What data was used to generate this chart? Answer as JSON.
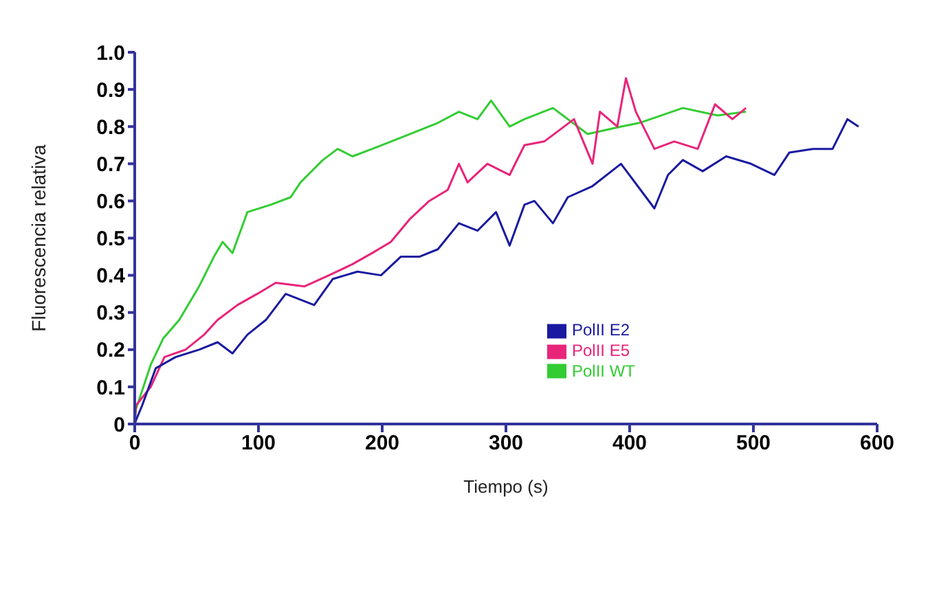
{
  "chart_data": {
    "type": "line",
    "xlabel": "Tiempo (s)",
    "ylabel": "Fluorescencia relativa",
    "xlim": [
      0,
      600
    ],
    "xticks": [
      0,
      100,
      200,
      300,
      400,
      500,
      600
    ],
    "ylim": [
      0,
      1.0
    ],
    "yticks": [
      0,
      0.1,
      0.2,
      0.3,
      0.4,
      0.5,
      0.6,
      0.7,
      0.8,
      0.9,
      {
        "value": 1.0,
        "label": "1.0"
      }
    ],
    "grid": false,
    "legend": "right",
    "marker": "none",
    "line_style": "solid",
    "series": [
      {
        "name": "PolII WT",
        "color": "#33cc33",
        "x": [
          0,
          1,
          13,
          23,
          36,
          52,
          64,
          71,
          79,
          91,
          110,
          126,
          134,
          152,
          164,
          176,
          192,
          215,
          245,
          262,
          277,
          288,
          303,
          315,
          338,
          366,
          393,
          408,
          443,
          471,
          494
        ],
        "values": [
          0,
          0.04,
          0.16,
          0.23,
          0.28,
          0.37,
          0.45,
          0.49,
          0.46,
          0.57,
          0.59,
          0.61,
          0.65,
          0.71,
          0.74,
          0.72,
          0.74,
          0.77,
          0.81,
          0.84,
          0.82,
          0.87,
          0.8,
          0.82,
          0.85,
          0.78,
          0.8,
          0.81,
          0.85,
          0.83,
          0.84
        ]
      },
      {
        "name": "PolII E5",
        "color": "#e8247a",
        "x": [
          0,
          1,
          13,
          24,
          41,
          56,
          67,
          83,
          99,
          114,
          137,
          157,
          176,
          192,
          207,
          222,
          238,
          253,
          262,
          269,
          285,
          303,
          315,
          331,
          355,
          370,
          376,
          390,
          397,
          405,
          420,
          436,
          455,
          469,
          483,
          494
        ],
        "values": [
          0,
          0.05,
          0.1,
          0.18,
          0.2,
          0.24,
          0.28,
          0.32,
          0.35,
          0.38,
          0.37,
          0.4,
          0.43,
          0.46,
          0.49,
          0.55,
          0.6,
          0.63,
          0.7,
          0.65,
          0.7,
          0.67,
          0.75,
          0.76,
          0.82,
          0.7,
          0.84,
          0.8,
          0.93,
          0.84,
          0.74,
          0.76,
          0.74,
          0.86,
          0.82,
          0.85
        ]
      },
      {
        "name": "PolII E2",
        "color": "#1a1aa0",
        "x": [
          0,
          1,
          6,
          17,
          33,
          52,
          67,
          79,
          91,
          106,
          122,
          145,
          160,
          180,
          199,
          215,
          230,
          245,
          262,
          277,
          292,
          303,
          315,
          323,
          338,
          350,
          370,
          393,
          420,
          431,
          443,
          459,
          478,
          498,
          517,
          529,
          548,
          564,
          576,
          585
        ],
        "values": [
          0,
          0.01,
          0.05,
          0.15,
          0.18,
          0.2,
          0.22,
          0.19,
          0.24,
          0.28,
          0.35,
          0.32,
          0.39,
          0.41,
          0.4,
          0.45,
          0.45,
          0.47,
          0.54,
          0.52,
          0.57,
          0.48,
          0.59,
          0.6,
          0.54,
          0.61,
          0.64,
          0.7,
          0.58,
          0.67,
          0.71,
          0.68,
          0.72,
          0.7,
          0.67,
          0.73,
          0.74,
          0.74,
          0.82,
          0.8
        ]
      }
    ]
  }
}
